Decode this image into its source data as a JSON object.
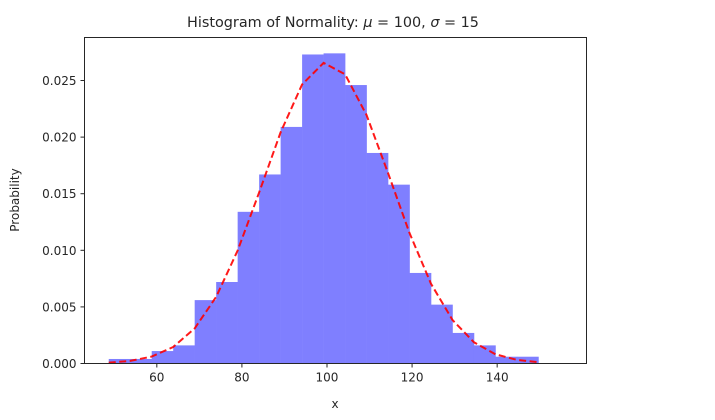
{
  "chart_data": {
    "type": "bar",
    "subtype": "histogram_with_pdf_line",
    "title": "Histogram of Normality: μ = 100, σ = 15",
    "title_parts": {
      "prefix": "Histogram of Normality: ",
      "mu_symbol": "μ",
      "mu_value": "100",
      "sigma_symbol": "σ",
      "sigma_value": "15"
    },
    "xlabel": "x",
    "ylabel": "Probability",
    "xlim": [
      43.0,
      161.0
    ],
    "ylim": [
      0.0,
      0.0288
    ],
    "xticks": [
      60,
      80,
      100,
      120,
      140
    ],
    "yticks": [
      0.0,
      0.005,
      0.01,
      0.015,
      0.02,
      0.025
    ],
    "ytick_labels": [
      "0.000",
      "0.005",
      "0.010",
      "0.015",
      "0.020",
      "0.025"
    ],
    "grid": false,
    "legend": null,
    "mu": 100,
    "sigma": 15,
    "bin_edges": [
      48.7,
      53.75,
      58.8,
      63.85,
      68.9,
      73.95,
      79.0,
      84.05,
      89.1,
      94.15,
      99.2,
      104.25,
      109.3,
      114.35,
      119.4,
      124.45,
      129.5,
      134.55,
      139.6,
      144.65,
      149.7
    ],
    "series": [
      {
        "name": "histogram",
        "kind": "bar",
        "color": "#7f7fff",
        "values": [
          0.0004,
          0.0004,
          0.0011,
          0.0016,
          0.0056,
          0.0072,
          0.0134,
          0.0167,
          0.0209,
          0.0273,
          0.0274,
          0.0246,
          0.0186,
          0.0158,
          0.008,
          0.0052,
          0.0027,
          0.0016,
          0.0006,
          0.0006
        ]
      },
      {
        "name": "normal pdf",
        "kind": "line",
        "style": "dashed",
        "color": "#ff0000"
      }
    ]
  }
}
